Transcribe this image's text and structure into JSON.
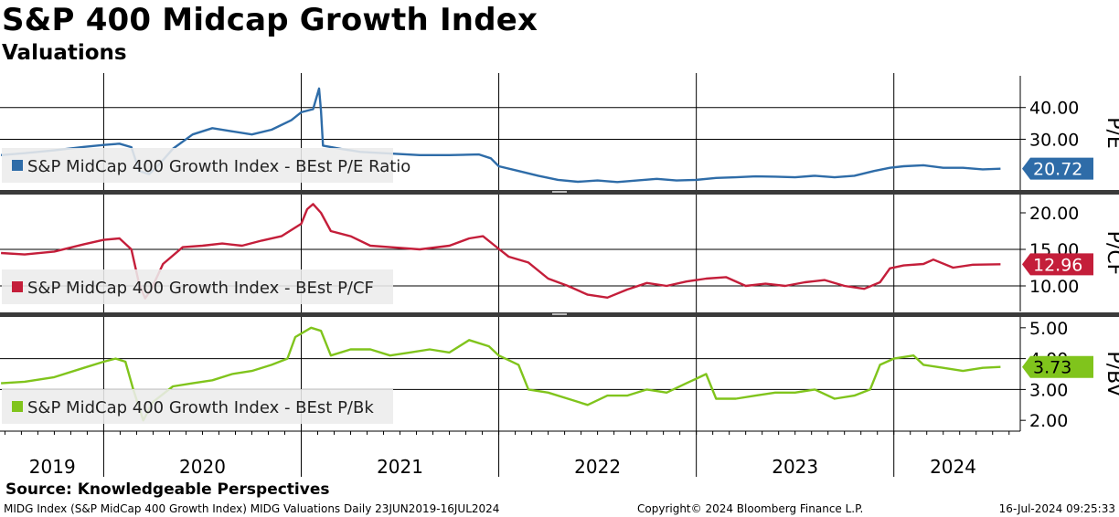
{
  "header": {
    "title": "S&P 400 Midcap Growth Index",
    "subtitle": "Valuations"
  },
  "footer": {
    "source": "Source: Knowledgeable Perspectives",
    "description": "MIDG Index (S&P MidCap 400 Growth Index) MIDG Valuations  Daily 23JUN2019-16JUL2024",
    "copyright": "Copyright© 2024 Bloomberg Finance L.P.",
    "timestamp": "16-Jul-2024 09:25:33"
  },
  "chart_data": [
    {
      "type": "line",
      "panel": "top",
      "axis_title": "P/E",
      "series_name": "S&P MidCap 400 Growth Index - BEst P/E Ratio",
      "color": "#2e6ca8",
      "last_value": "20.72",
      "ylim": [
        14,
        50
      ],
      "yticks": [
        "40.00",
        "30.00"
      ],
      "ytick_values": [
        40,
        30
      ],
      "gridlines": [
        40,
        30
      ],
      "points": [
        [
          2019.48,
          25.0
        ],
        [
          2019.6,
          25.6
        ],
        [
          2019.75,
          26.5
        ],
        [
          2019.9,
          27.6
        ],
        [
          2020.0,
          28.2
        ],
        [
          2020.08,
          28.6
        ],
        [
          2020.14,
          27.5
        ],
        [
          2020.18,
          20.0
        ],
        [
          2020.23,
          19.0
        ],
        [
          2020.28,
          22.0
        ],
        [
          2020.35,
          27.0
        ],
        [
          2020.45,
          31.5
        ],
        [
          2020.55,
          33.5
        ],
        [
          2020.65,
          32.5
        ],
        [
          2020.75,
          31.5
        ],
        [
          2020.85,
          33.0
        ],
        [
          2020.95,
          36.0
        ],
        [
          2021.0,
          38.5
        ],
        [
          2021.06,
          39.5
        ],
        [
          2021.09,
          46.0
        ],
        [
          2021.1,
          39.0
        ],
        [
          2021.11,
          28.0
        ],
        [
          2021.2,
          27.0
        ],
        [
          2021.3,
          26.0
        ],
        [
          2021.45,
          25.5
        ],
        [
          2021.6,
          25.0
        ],
        [
          2021.75,
          25.0
        ],
        [
          2021.9,
          25.2
        ],
        [
          2021.96,
          24.0
        ],
        [
          2022.0,
          21.5
        ],
        [
          2022.1,
          20.0
        ],
        [
          2022.2,
          18.5
        ],
        [
          2022.3,
          17.2
        ],
        [
          2022.4,
          16.6
        ],
        [
          2022.5,
          17.0
        ],
        [
          2022.6,
          16.5
        ],
        [
          2022.7,
          17.0
        ],
        [
          2022.8,
          17.5
        ],
        [
          2022.9,
          17.0
        ],
        [
          2023.0,
          17.2
        ],
        [
          2023.1,
          17.8
        ],
        [
          2023.2,
          18.0
        ],
        [
          2023.3,
          18.3
        ],
        [
          2023.4,
          18.2
        ],
        [
          2023.5,
          18.0
        ],
        [
          2023.6,
          18.5
        ],
        [
          2023.7,
          18.0
        ],
        [
          2023.8,
          18.5
        ],
        [
          2023.9,
          20.0
        ],
        [
          2023.98,
          21.0
        ],
        [
          2024.05,
          21.5
        ],
        [
          2024.15,
          21.8
        ],
        [
          2024.25,
          21.0
        ],
        [
          2024.35,
          21.0
        ],
        [
          2024.45,
          20.5
        ],
        [
          2024.54,
          20.72
        ]
      ]
    },
    {
      "type": "line",
      "panel": "middle",
      "axis_title": "P/CF",
      "series_name": "S&P MidCap 400 Growth Index - BEst P/CF",
      "color": "#c41e3a",
      "last_value": "12.96",
      "ylim": [
        6.5,
        22.5
      ],
      "yticks": [
        "20.00",
        "15.00",
        "10.00"
      ],
      "ytick_values": [
        20,
        15,
        10
      ],
      "gridlines": [
        15,
        10
      ],
      "points": [
        [
          2019.48,
          14.5
        ],
        [
          2019.6,
          14.3
        ],
        [
          2019.75,
          14.7
        ],
        [
          2019.9,
          15.7
        ],
        [
          2020.0,
          16.3
        ],
        [
          2020.08,
          16.5
        ],
        [
          2020.14,
          15.0
        ],
        [
          2020.18,
          10.2
        ],
        [
          2020.21,
          8.3
        ],
        [
          2020.24,
          9.5
        ],
        [
          2020.3,
          13.0
        ],
        [
          2020.4,
          15.3
        ],
        [
          2020.5,
          15.5
        ],
        [
          2020.6,
          15.8
        ],
        [
          2020.7,
          15.5
        ],
        [
          2020.8,
          16.2
        ],
        [
          2020.9,
          16.8
        ],
        [
          2021.0,
          18.5
        ],
        [
          2021.03,
          20.5
        ],
        [
          2021.06,
          21.2
        ],
        [
          2021.1,
          20.0
        ],
        [
          2021.15,
          17.5
        ],
        [
          2021.25,
          16.8
        ],
        [
          2021.35,
          15.5
        ],
        [
          2021.45,
          15.3
        ],
        [
          2021.6,
          15.0
        ],
        [
          2021.75,
          15.5
        ],
        [
          2021.85,
          16.5
        ],
        [
          2021.92,
          16.8
        ],
        [
          2021.98,
          15.5
        ],
        [
          2022.05,
          14.0
        ],
        [
          2022.15,
          13.2
        ],
        [
          2022.25,
          11.0
        ],
        [
          2022.35,
          10.0
        ],
        [
          2022.45,
          8.8
        ],
        [
          2022.55,
          8.4
        ],
        [
          2022.65,
          9.5
        ],
        [
          2022.75,
          10.4
        ],
        [
          2022.85,
          10.0
        ],
        [
          2022.95,
          10.6
        ],
        [
          2023.05,
          11.0
        ],
        [
          2023.15,
          11.2
        ],
        [
          2023.25,
          10.0
        ],
        [
          2023.35,
          10.3
        ],
        [
          2023.45,
          10.0
        ],
        [
          2023.55,
          10.5
        ],
        [
          2023.65,
          10.8
        ],
        [
          2023.75,
          10.0
        ],
        [
          2023.85,
          9.6
        ],
        [
          2023.93,
          10.5
        ],
        [
          2023.98,
          12.4
        ],
        [
          2024.05,
          12.8
        ],
        [
          2024.15,
          13.0
        ],
        [
          2024.2,
          13.6
        ],
        [
          2024.3,
          12.5
        ],
        [
          2024.4,
          12.9
        ],
        [
          2024.54,
          12.96
        ]
      ]
    },
    {
      "type": "line",
      "panel": "bottom",
      "axis_title": "P/BV",
      "series_name": "S&P MidCap 400 Growth Index - BEst P/Bk",
      "color": "#80c41c",
      "last_value": "3.73",
      "ylim": [
        1.65,
        5.35
      ],
      "yticks": [
        "5.00",
        "4.00",
        "3.00",
        "2.00"
      ],
      "ytick_values": [
        5,
        4,
        3,
        2
      ],
      "gridlines": [
        4,
        3
      ],
      "points": [
        [
          2019.48,
          3.2
        ],
        [
          2019.6,
          3.25
        ],
        [
          2019.75,
          3.4
        ],
        [
          2019.9,
          3.7
        ],
        [
          2020.0,
          3.9
        ],
        [
          2020.06,
          4.0
        ],
        [
          2020.11,
          3.9
        ],
        [
          2020.15,
          3.0
        ],
        [
          2020.2,
          2.0
        ],
        [
          2020.25,
          2.6
        ],
        [
          2020.35,
          3.1
        ],
        [
          2020.45,
          3.2
        ],
        [
          2020.55,
          3.3
        ],
        [
          2020.65,
          3.5
        ],
        [
          2020.75,
          3.6
        ],
        [
          2020.85,
          3.8
        ],
        [
          2020.93,
          4.0
        ],
        [
          2020.97,
          4.7
        ],
        [
          2021.05,
          5.0
        ],
        [
          2021.1,
          4.9
        ],
        [
          2021.15,
          4.1
        ],
        [
          2021.25,
          4.3
        ],
        [
          2021.35,
          4.3
        ],
        [
          2021.45,
          4.1
        ],
        [
          2021.55,
          4.2
        ],
        [
          2021.65,
          4.3
        ],
        [
          2021.75,
          4.2
        ],
        [
          2021.85,
          4.6
        ],
        [
          2021.95,
          4.4
        ],
        [
          2022.0,
          4.1
        ],
        [
          2022.1,
          3.8
        ],
        [
          2022.15,
          3.0
        ],
        [
          2022.25,
          2.9
        ],
        [
          2022.35,
          2.7
        ],
        [
          2022.45,
          2.5
        ],
        [
          2022.55,
          2.8
        ],
        [
          2022.65,
          2.8
        ],
        [
          2022.75,
          3.0
        ],
        [
          2022.85,
          2.9
        ],
        [
          2022.95,
          3.2
        ],
        [
          2023.05,
          3.5
        ],
        [
          2023.1,
          2.7
        ],
        [
          2023.2,
          2.7
        ],
        [
          2023.3,
          2.8
        ],
        [
          2023.4,
          2.9
        ],
        [
          2023.5,
          2.9
        ],
        [
          2023.6,
          3.0
        ],
        [
          2023.7,
          2.7
        ],
        [
          2023.8,
          2.8
        ],
        [
          2023.88,
          3.0
        ],
        [
          2023.93,
          3.8
        ],
        [
          2024.0,
          4.0
        ],
        [
          2024.1,
          4.1
        ],
        [
          2024.15,
          3.8
        ],
        [
          2024.25,
          3.7
        ],
        [
          2024.35,
          3.6
        ],
        [
          2024.45,
          3.7
        ],
        [
          2024.54,
          3.73
        ]
      ]
    }
  ],
  "x_axis": {
    "year_labels": [
      "2019",
      "2020",
      "2021",
      "2022",
      "2023",
      "2024"
    ],
    "year_label_centers": [
      2019.74,
      2020.5,
      2021.5,
      2022.5,
      2023.5,
      2024.3
    ],
    "year_boundaries": [
      2020.0,
      2021.0,
      2022.0,
      2023.0,
      2024.0
    ],
    "xlim": [
      2019.475,
      2024.64
    ]
  }
}
